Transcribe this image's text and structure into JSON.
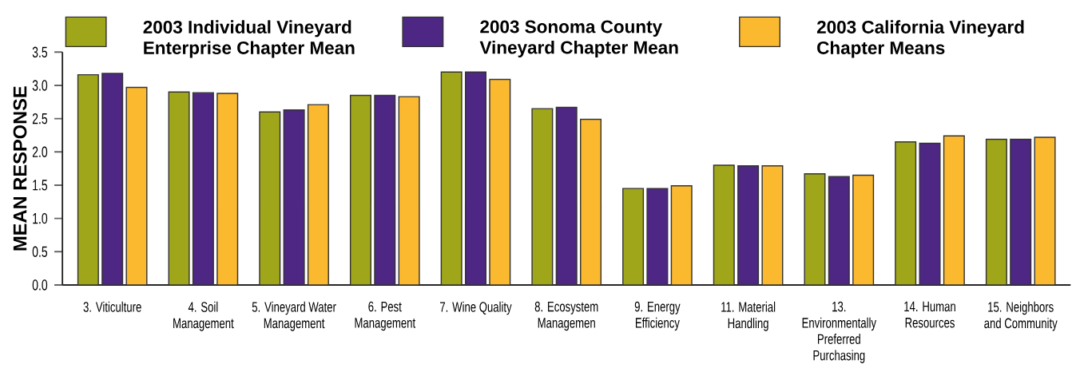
{
  "chart_data": {
    "type": "bar",
    "ylabel": "MEAN RESPONSE",
    "categories": [
      "3. Viticulture",
      "4. Soil Management",
      "5. Vineyard Water Management",
      "6. Pest Management",
      "7. Wine Quality",
      "8. Ecosystem Managemen",
      "9. Energy Efficiency",
      "11. Material Handling",
      "13. Environmentally Preferred Purchasing",
      "14. Human Resources",
      "15. Neighbors and Community"
    ],
    "series": [
      {
        "name": "2003 Individual Vineyard Enterprise Chapter Mean",
        "color": "#a0a61a",
        "values": [
          3.16,
          2.9,
          2.6,
          2.85,
          3.2,
          2.65,
          1.45,
          1.8,
          1.67,
          2.15,
          2.19
        ]
      },
      {
        "name": "2003 Sonoma County Vineyard Chapter Mean",
        "color": "#4e2683",
        "values": [
          3.18,
          2.89,
          2.63,
          2.85,
          3.2,
          2.67,
          1.45,
          1.79,
          1.63,
          2.13,
          2.19
        ]
      },
      {
        "name": "2003 California Vineyard Chapter Means",
        "color": "#fbb92f",
        "values": [
          2.97,
          2.88,
          2.71,
          2.83,
          3.09,
          2.49,
          1.49,
          1.79,
          1.65,
          2.24,
          2.22
        ]
      }
    ],
    "ylim": [
      0,
      3.5
    ],
    "yticks": [
      {
        "value": 0,
        "label": "0.0"
      },
      {
        "value": 0.5,
        "label": "0.5"
      },
      {
        "value": 1,
        "label": "1.0"
      },
      {
        "value": 1.5,
        "label": "1.5"
      },
      {
        "value": 2,
        "label": "2.0"
      },
      {
        "value": 2.5,
        "label": "2.5"
      },
      {
        "value": 3,
        "label": "3.0"
      },
      {
        "value": 3.5,
        "label": "3.5"
      }
    ],
    "grid": false,
    "legend": "top"
  }
}
